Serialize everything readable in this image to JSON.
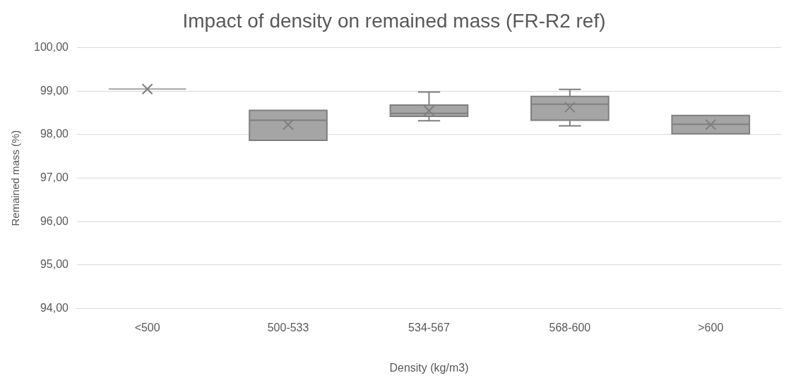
{
  "chart_data": {
    "type": "box",
    "title": "Impact of density on remained mass (FR-R2 ref)",
    "xlabel": "Density (kg/m3)",
    "ylabel": "Remained mass (%)",
    "categories": [
      "<500",
      "500-533",
      "534-567",
      "568-600",
      ">600"
    ],
    "boxes": [
      {
        "low": 99.05,
        "q1": 99.05,
        "median": 99.05,
        "q3": 99.05,
        "high": 99.05,
        "mean": 99.05
      },
      {
        "low": 97.87,
        "q1": 97.87,
        "median": 98.33,
        "q3": 98.56,
        "high": 98.56,
        "mean": 98.23
      },
      {
        "low": 98.32,
        "q1": 98.42,
        "median": 98.49,
        "q3": 98.68,
        "high": 98.98,
        "mean": 98.55
      },
      {
        "low": 98.2,
        "q1": 98.33,
        "median": 98.7,
        "q3": 98.88,
        "high": 99.04,
        "mean": 98.63
      },
      {
        "low": 98.02,
        "q1": 98.02,
        "median": 98.24,
        "q3": 98.44,
        "high": 98.44,
        "mean": 98.23
      }
    ],
    "color": "#a5a5a5",
    "ylim": [
      94,
      100
    ],
    "yticks": [
      {
        "value": 94,
        "label": "94,00"
      },
      {
        "value": 95,
        "label": "95,00"
      },
      {
        "value": 96,
        "label": "96,00"
      },
      {
        "value": 97,
        "label": "97,00"
      },
      {
        "value": 98,
        "label": "98,00"
      },
      {
        "value": 99,
        "label": "99,00"
      },
      {
        "value": 100,
        "label": "100,00"
      }
    ],
    "grid": "y",
    "legend": false,
    "marker": "cross"
  }
}
